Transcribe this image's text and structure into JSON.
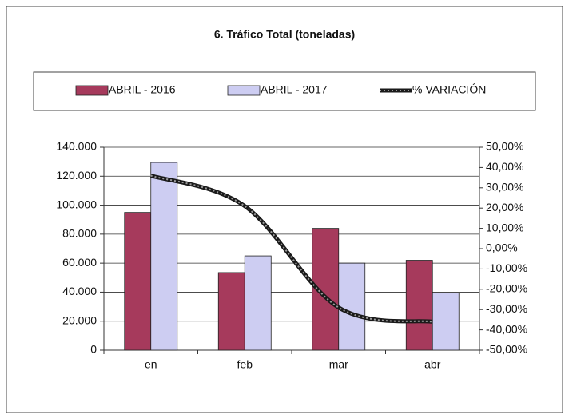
{
  "chart_data": {
    "type": "bar_line",
    "title": "6. Tráfico Total (toneladas)",
    "categories": [
      "en",
      "feb",
      "mar",
      "abr"
    ],
    "series": [
      {
        "name": "ABRIL - 2016",
        "color": "#a63a5c",
        "values": [
          95000,
          53500,
          84000,
          62000
        ]
      },
      {
        "name": "ABRIL - 2017",
        "color": "#cdcdf2",
        "values": [
          129500,
          65000,
          60000,
          39500
        ]
      },
      {
        "name": "% VARIACIÓN",
        "color": "#1a1a1a",
        "axis": "y2",
        "values": [
          36,
          21,
          -29,
          -36
        ]
      }
    ],
    "ylim": [
      0,
      140000
    ],
    "yticks": [
      0,
      {
        "value": 20000,
        "label": "20.000"
      },
      {
        "value": 40000,
        "label": "40.000"
      },
      {
        "value": 60000,
        "label": "60.000"
      },
      {
        "value": 80000,
        "label": "80.000"
      },
      {
        "value": 100000,
        "label": "100.000"
      },
      {
        "value": 120000,
        "label": "120.000"
      },
      {
        "value": 140000,
        "label": "140.000"
      }
    ],
    "y2lim": [
      -50,
      50
    ],
    "y2ticks": [
      {
        "value": -50,
        "label": "-50,00%"
      },
      {
        "value": -40,
        "label": "-40,00%"
      },
      {
        "value": -30,
        "label": "-30,00%"
      },
      {
        "value": -20,
        "label": "-20,00%"
      },
      {
        "value": -10,
        "label": "-10,00%"
      },
      {
        "value": 0,
        "label": "0,00%"
      },
      {
        "value": 10,
        "label": "10,00%"
      },
      {
        "value": 20,
        "label": "20,00%"
      },
      {
        "value": 30,
        "label": "30,00%"
      },
      {
        "value": 40,
        "label": "40,00%"
      },
      {
        "value": 50,
        "label": "50,00%"
      }
    ],
    "grid": true,
    "legend": "top"
  }
}
